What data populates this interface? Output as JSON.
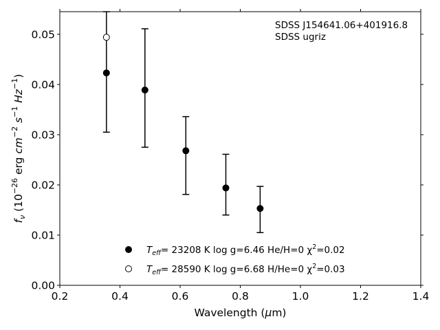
{
  "chart_data": {
    "type": "scatter",
    "xlabel": "Wavelength (μm)",
    "ylabel": "f_ν (10^-26 erg cm^-2 s^-1 Hz^-1)",
    "xlim": [
      0.2,
      1.4
    ],
    "ylim": [
      0.0,
      0.0545
    ],
    "xticks": [
      0.2,
      0.4,
      0.6,
      0.8,
      1.0,
      1.2,
      1.4
    ],
    "xtick_labels": [
      "0.2",
      "0.4",
      "0.6",
      "0.8",
      "1.0",
      "1.2",
      "1.4"
    ],
    "yticks": [
      0.0,
      0.01,
      0.02,
      0.03,
      0.04,
      0.05
    ],
    "ytick_labels": [
      "0.00",
      "0.01",
      "0.02",
      "0.03",
      "0.04",
      "0.05"
    ],
    "grid": false,
    "annotation": [
      "SDSS J154641.06+401916.8",
      "SDSS ugriz"
    ],
    "observed": {
      "x": [
        0.355,
        0.483,
        0.619,
        0.752,
        0.866
      ],
      "y": [
        0.0423,
        0.0389,
        0.0268,
        0.0194,
        0.0153
      ],
      "y_low": [
        0.0305,
        0.0275,
        0.0181,
        0.014,
        0.0105
      ],
      "y_high": [
        0.0545,
        0.0511,
        0.0336,
        0.0261,
        0.0197
      ]
    },
    "series": [
      {
        "label": {
          "teff": "T",
          "teff_sub": "eff",
          "rest": "= 23208 K  log g=6.46  He/H=0  χ",
          "chi_sup": "2",
          "tail": "=0.02"
        },
        "marker": "filled",
        "x": [
          0.355,
          0.483,
          0.619,
          0.752,
          0.866
        ],
        "y": [
          0.0423,
          0.0389,
          0.0268,
          0.0194,
          0.0153
        ]
      },
      {
        "label": {
          "teff": "T",
          "teff_sub": "eff",
          "rest": "= 28590 K  log g=6.68  H/He=0  χ",
          "chi_sup": "2",
          "tail": "=0.03"
        },
        "marker": "open",
        "x": [
          0.355
        ],
        "y": [
          0.0494
        ]
      }
    ],
    "legend_placement": "bottom-center"
  }
}
